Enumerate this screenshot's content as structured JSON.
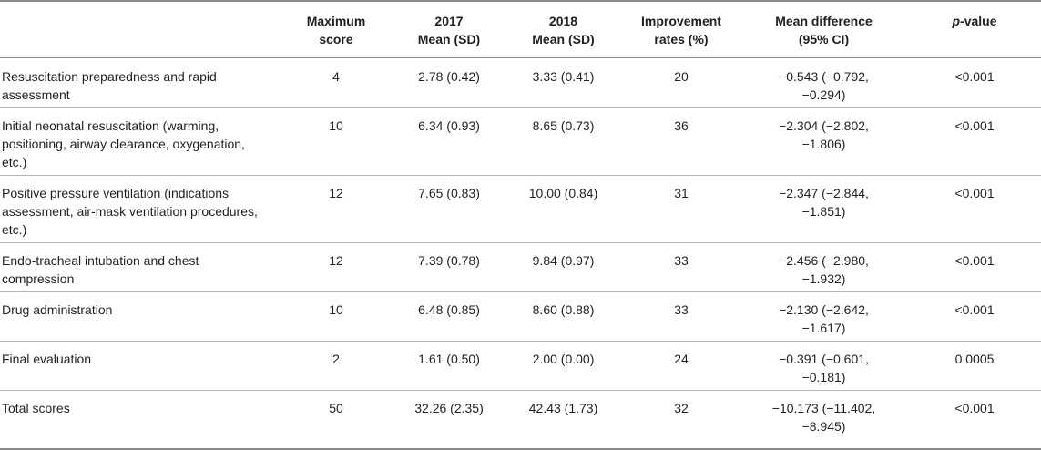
{
  "headers": {
    "col0": "",
    "col1": [
      "Maximum",
      "score"
    ],
    "col2": [
      "2017",
      "Mean (SD)"
    ],
    "col3": [
      "2018",
      "Mean (SD)"
    ],
    "col4": [
      "Improvement",
      "rates (%)"
    ],
    "col5": [
      "Mean difference",
      "(95% CI)"
    ],
    "col6_italic": "p",
    "col6_rest": "-value"
  },
  "rows": [
    {
      "item": "Resuscitation preparedness and rapid assessment",
      "max": "4",
      "m2017": "2.78 (0.42)",
      "m2018": "3.33 (0.41)",
      "rate": "20",
      "diff": "−0.543 (−0.792, −0.294)",
      "p": "<0.001"
    },
    {
      "item": "Initial neonatal resuscitation (warming, positioning, airway clearance, oxygenation, etc.)",
      "max": "10",
      "m2017": "6.34 (0.93)",
      "m2018": "8.65 (0.73)",
      "rate": "36",
      "diff": "−2.304 (−2.802, −1.806)",
      "p": "<0.001"
    },
    {
      "item": "Positive pressure ventilation (indications assessment, air-mask ventilation procedures, etc.)",
      "max": "12",
      "m2017": "7.65 (0.83)",
      "m2018": "10.00 (0.84)",
      "rate": "31",
      "diff": "−2.347 (−2.844, −1.851)",
      "p": "<0.001"
    },
    {
      "item": "Endo-tracheal intubation and chest compression",
      "max": "12",
      "m2017": "7.39 (0.78)",
      "m2018": "9.84 (0.97)",
      "rate": "33",
      "diff": "−2.456 (−2.980, −1.932)",
      "p": "<0.001"
    },
    {
      "item": "Drug administration",
      "max": "10",
      "m2017": "6.48 (0.85)",
      "m2018": "8.60 (0.88)",
      "rate": "33",
      "diff": "−2.130 (−2.642, −1.617)",
      "p": "<0.001"
    },
    {
      "item": "Final evaluation",
      "max": "2",
      "m2017": "1.61 (0.50)",
      "m2018": "2.00 (0.00)",
      "rate": "24",
      "diff": "−0.391 (−0.601, −0.181)",
      "p": "0.0005"
    },
    {
      "item": "Total scores",
      "max": "50",
      "m2017": "32.26 (2.35)",
      "m2018": "42.43 (1.73)",
      "rate": "32",
      "diff": "−10.173 (−11.402, −8.945)",
      "p": "<0.001"
    }
  ]
}
